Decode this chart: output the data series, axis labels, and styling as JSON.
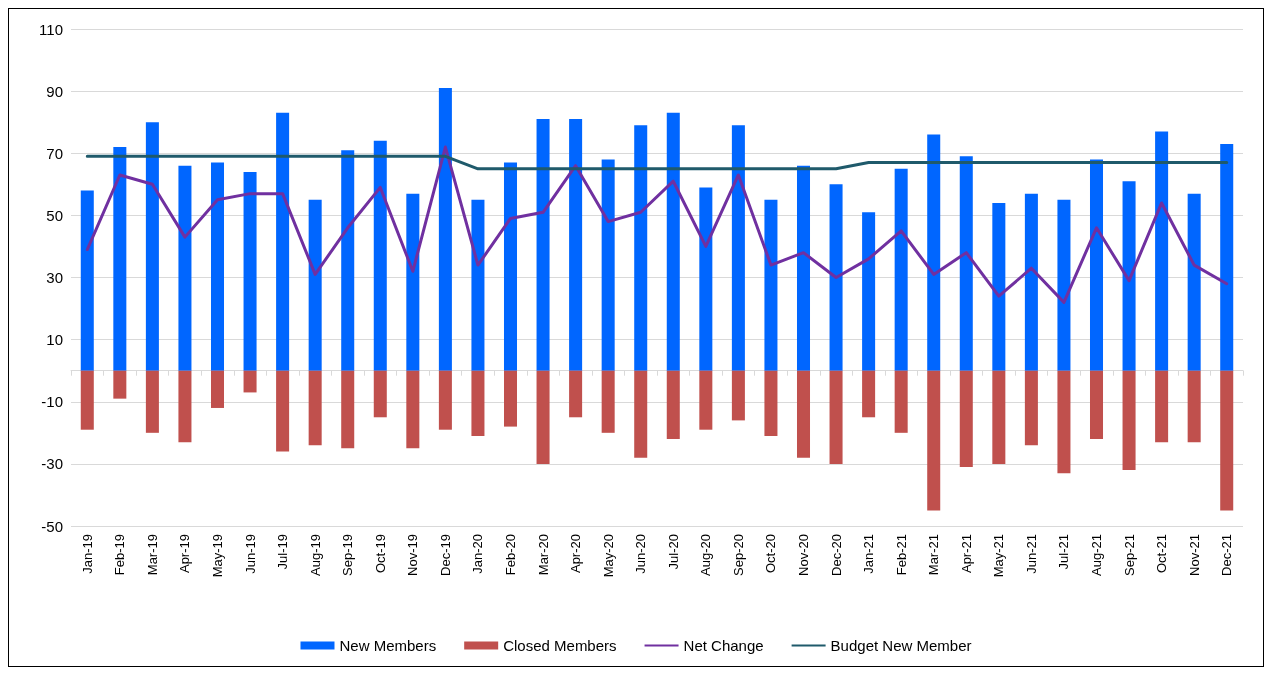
{
  "chart_data": {
    "type": "bar",
    "categories": [
      "Jan-19",
      "Feb-19",
      "Mar-19",
      "Apr-19",
      "May-19",
      "Jun-19",
      "Jul-19",
      "Aug-19",
      "Sep-19",
      "Oct-19",
      "Nov-19",
      "Dec-19",
      "Jan-20",
      "Feb-20",
      "Mar-20",
      "Apr-20",
      "May-20",
      "Jun-20",
      "Jul-20",
      "Aug-20",
      "Sep-20",
      "Oct-20",
      "Nov-20",
      "Dec-20",
      "Jan-21",
      "Feb-21",
      "Mar-21",
      "Apr-21",
      "May-21",
      "Jun-21",
      "Jul-21",
      "Aug-21",
      "Sep-21",
      "Oct-21",
      "Nov-21",
      "Dec-21"
    ],
    "series": [
      {
        "name": "New Members",
        "color": "#0066ff",
        "values": [
          58,
          72,
          80,
          66,
          67,
          64,
          83,
          55,
          71,
          74,
          57,
          91,
          55,
          67,
          81,
          81,
          68,
          79,
          83,
          59,
          79,
          55,
          66,
          60,
          51,
          65,
          76,
          69,
          54,
          57,
          55,
          68,
          61,
          77,
          57,
          73
        ]
      },
      {
        "name": "Closed Members",
        "color": "#c0504d",
        "values": [
          -19,
          -9,
          -20,
          -23,
          -12,
          -7,
          -26,
          -24,
          -25,
          -15,
          -25,
          -19,
          -21,
          -18,
          -30,
          -15,
          -20,
          -28,
          -22,
          -19,
          -16,
          -21,
          -28,
          -30,
          -15,
          -20,
          -45,
          -31,
          -30,
          -24,
          -33,
          -22,
          -32,
          -23,
          -23,
          -45
        ]
      },
      {
        "name": "Net Change",
        "type": "line",
        "color": "#7030a0",
        "values": [
          39,
          63,
          60,
          43,
          55,
          57,
          57,
          31,
          46,
          59,
          32,
          72,
          34,
          49,
          51,
          66,
          48,
          51,
          61,
          40,
          63,
          34,
          38,
          30,
          36,
          45,
          31,
          38,
          24,
          33,
          22,
          46,
          29,
          54,
          34,
          28
        ]
      },
      {
        "name": "Budget New Member",
        "type": "line",
        "color": "#1f5a6b",
        "values": [
          69,
          69,
          69,
          69,
          69,
          69,
          69,
          69,
          69,
          69,
          69,
          69,
          65,
          65,
          65,
          65,
          65,
          65,
          65,
          65,
          65,
          65,
          65,
          65,
          67,
          67,
          67,
          67,
          67,
          67,
          67,
          67,
          67,
          67,
          67,
          67
        ]
      }
    ],
    "ylim": [
      -50,
      110
    ],
    "yticks": [
      -50,
      -30,
      -10,
      10,
      30,
      50,
      70,
      90,
      110
    ],
    "stacked": true,
    "grid": "y",
    "legend": "bottom",
    "marker": "none",
    "line_style": "solid"
  }
}
